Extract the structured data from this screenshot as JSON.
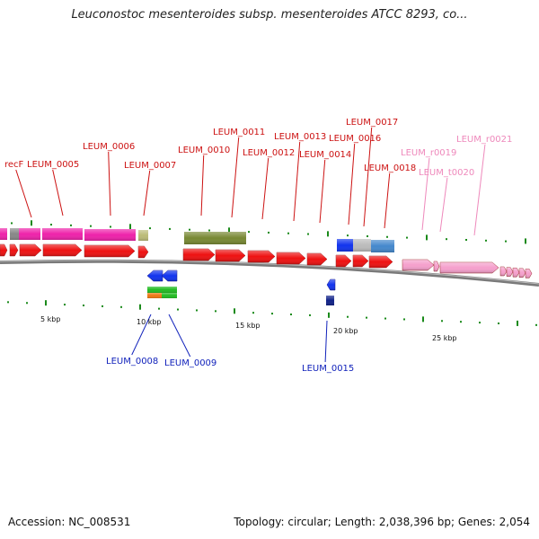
{
  "header": {
    "title": "Leuconostoc mesenteroides subsp. mesenteroides ATCC 8293, co..."
  },
  "footer": {
    "accession": "Accession: NC_008531",
    "summary": "Topology: circular; Length: 2,038,396 bp; Genes: 2,054"
  },
  "colors": {
    "cds": "#ee1111",
    "rrna": "#f5a0cc",
    "label_red": "#cc1111",
    "label_pink": "#ee88bb",
    "label_blue": "#1122bb",
    "tick": "#1a8a1a",
    "backbone": "#888888"
  },
  "scale": {
    "ticks": [
      {
        "label": "5 kbp"
      },
      {
        "label": "10 kbp"
      },
      {
        "label": "15 kbp"
      },
      {
        "label": "20 kbp"
      },
      {
        "label": "25 kbp"
      }
    ]
  },
  "features": {
    "top_labels": [
      {
        "text": "recF",
        "color": "red"
      },
      {
        "text": "LEUM_0005",
        "color": "red"
      },
      {
        "text": "LEUM_0006",
        "color": "red"
      },
      {
        "text": "LEUM_0007",
        "color": "red"
      },
      {
        "text": "LEUM_0010",
        "color": "red"
      },
      {
        "text": "LEUM_0011",
        "color": "red"
      },
      {
        "text": "LEUM_0012",
        "color": "red"
      },
      {
        "text": "LEUM_0013",
        "color": "red"
      },
      {
        "text": "LEUM_0014",
        "color": "red"
      },
      {
        "text": "LEUM_0016",
        "color": "red"
      },
      {
        "text": "LEUM_0017",
        "color": "red"
      },
      {
        "text": "LEUM_0018",
        "color": "red"
      },
      {
        "text": "LEUM_r0019",
        "color": "pink"
      },
      {
        "text": "LEUM_t0020",
        "color": "pink"
      },
      {
        "text": "LEUM_r0021",
        "color": "pink"
      }
    ],
    "bottom_labels": [
      {
        "text": "LEUM_0008",
        "color": "blue"
      },
      {
        "text": "LEUM_0009",
        "color": "blue"
      },
      {
        "text": "LEUM_0015",
        "color": "blue"
      }
    ]
  }
}
